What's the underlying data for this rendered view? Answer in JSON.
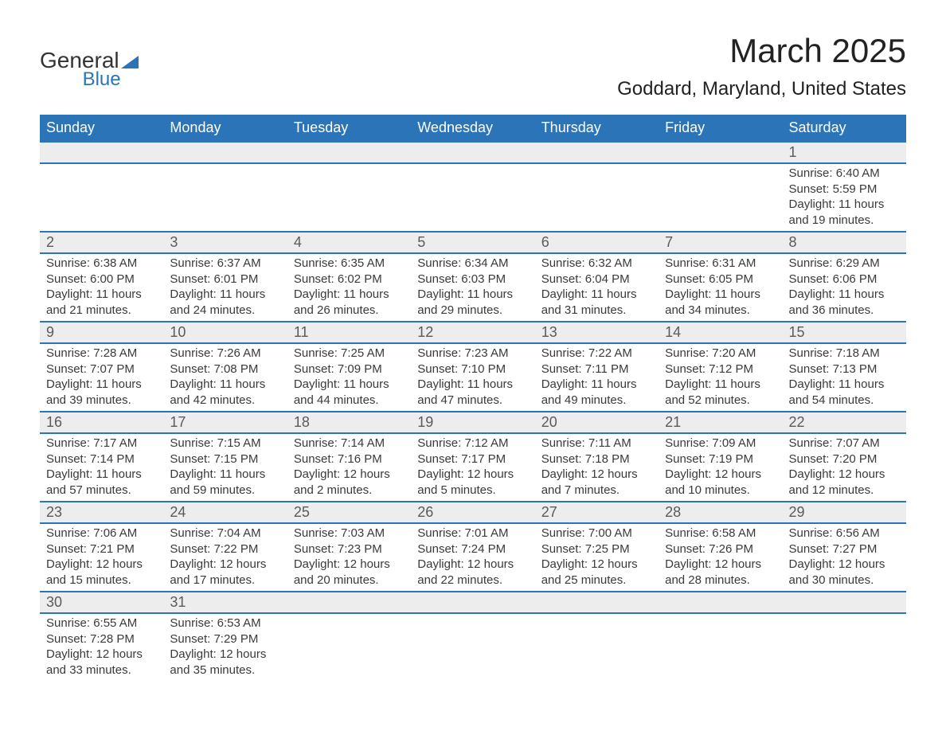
{
  "logo": {
    "line1": "General",
    "line2": "Blue"
  },
  "title": "March 2025",
  "subtitle": "Goddard, Maryland, United States",
  "weekday_labels": [
    "Sunday",
    "Monday",
    "Tuesday",
    "Wednesday",
    "Thursday",
    "Friday",
    "Saturday"
  ],
  "colors": {
    "header_bg": "#2b74b8",
    "header_text": "#ffffff",
    "daynum_bg": "#ededed",
    "row_separator": "#2b74b8",
    "body_text": "#3a3a3a",
    "title_text": "#222222",
    "page_bg": "#ffffff"
  },
  "typography": {
    "title_fontsize": 42,
    "subtitle_fontsize": 24,
    "weekday_fontsize": 18,
    "daynum_fontsize": 18,
    "detail_fontsize": 15,
    "font_family": "Arial"
  },
  "layout": {
    "columns": 7,
    "rows": 6,
    "first_day_column_index": 6
  },
  "days": [
    {
      "n": 1,
      "sunrise": "6:40 AM",
      "sunset": "5:59 PM",
      "daylight": "11 hours and 19 minutes."
    },
    {
      "n": 2,
      "sunrise": "6:38 AM",
      "sunset": "6:00 PM",
      "daylight": "11 hours and 21 minutes."
    },
    {
      "n": 3,
      "sunrise": "6:37 AM",
      "sunset": "6:01 PM",
      "daylight": "11 hours and 24 minutes."
    },
    {
      "n": 4,
      "sunrise": "6:35 AM",
      "sunset": "6:02 PM",
      "daylight": "11 hours and 26 minutes."
    },
    {
      "n": 5,
      "sunrise": "6:34 AM",
      "sunset": "6:03 PM",
      "daylight": "11 hours and 29 minutes."
    },
    {
      "n": 6,
      "sunrise": "6:32 AM",
      "sunset": "6:04 PM",
      "daylight": "11 hours and 31 minutes."
    },
    {
      "n": 7,
      "sunrise": "6:31 AM",
      "sunset": "6:05 PM",
      "daylight": "11 hours and 34 minutes."
    },
    {
      "n": 8,
      "sunrise": "6:29 AM",
      "sunset": "6:06 PM",
      "daylight": "11 hours and 36 minutes."
    },
    {
      "n": 9,
      "sunrise": "7:28 AM",
      "sunset": "7:07 PM",
      "daylight": "11 hours and 39 minutes."
    },
    {
      "n": 10,
      "sunrise": "7:26 AM",
      "sunset": "7:08 PM",
      "daylight": "11 hours and 42 minutes."
    },
    {
      "n": 11,
      "sunrise": "7:25 AM",
      "sunset": "7:09 PM",
      "daylight": "11 hours and 44 minutes."
    },
    {
      "n": 12,
      "sunrise": "7:23 AM",
      "sunset": "7:10 PM",
      "daylight": "11 hours and 47 minutes."
    },
    {
      "n": 13,
      "sunrise": "7:22 AM",
      "sunset": "7:11 PM",
      "daylight": "11 hours and 49 minutes."
    },
    {
      "n": 14,
      "sunrise": "7:20 AM",
      "sunset": "7:12 PM",
      "daylight": "11 hours and 52 minutes."
    },
    {
      "n": 15,
      "sunrise": "7:18 AM",
      "sunset": "7:13 PM",
      "daylight": "11 hours and 54 minutes."
    },
    {
      "n": 16,
      "sunrise": "7:17 AM",
      "sunset": "7:14 PM",
      "daylight": "11 hours and 57 minutes."
    },
    {
      "n": 17,
      "sunrise": "7:15 AM",
      "sunset": "7:15 PM",
      "daylight": "11 hours and 59 minutes."
    },
    {
      "n": 18,
      "sunrise": "7:14 AM",
      "sunset": "7:16 PM",
      "daylight": "12 hours and 2 minutes."
    },
    {
      "n": 19,
      "sunrise": "7:12 AM",
      "sunset": "7:17 PM",
      "daylight": "12 hours and 5 minutes."
    },
    {
      "n": 20,
      "sunrise": "7:11 AM",
      "sunset": "7:18 PM",
      "daylight": "12 hours and 7 minutes."
    },
    {
      "n": 21,
      "sunrise": "7:09 AM",
      "sunset": "7:19 PM",
      "daylight": "12 hours and 10 minutes."
    },
    {
      "n": 22,
      "sunrise": "7:07 AM",
      "sunset": "7:20 PM",
      "daylight": "12 hours and 12 minutes."
    },
    {
      "n": 23,
      "sunrise": "7:06 AM",
      "sunset": "7:21 PM",
      "daylight": "12 hours and 15 minutes."
    },
    {
      "n": 24,
      "sunrise": "7:04 AM",
      "sunset": "7:22 PM",
      "daylight": "12 hours and 17 minutes."
    },
    {
      "n": 25,
      "sunrise": "7:03 AM",
      "sunset": "7:23 PM",
      "daylight": "12 hours and 20 minutes."
    },
    {
      "n": 26,
      "sunrise": "7:01 AM",
      "sunset": "7:24 PM",
      "daylight": "12 hours and 22 minutes."
    },
    {
      "n": 27,
      "sunrise": "7:00 AM",
      "sunset": "7:25 PM",
      "daylight": "12 hours and 25 minutes."
    },
    {
      "n": 28,
      "sunrise": "6:58 AM",
      "sunset": "7:26 PM",
      "daylight": "12 hours and 28 minutes."
    },
    {
      "n": 29,
      "sunrise": "6:56 AM",
      "sunset": "7:27 PM",
      "daylight": "12 hours and 30 minutes."
    },
    {
      "n": 30,
      "sunrise": "6:55 AM",
      "sunset": "7:28 PM",
      "daylight": "12 hours and 33 minutes."
    },
    {
      "n": 31,
      "sunrise": "6:53 AM",
      "sunset": "7:29 PM",
      "daylight": "12 hours and 35 minutes."
    }
  ],
  "labels": {
    "sunrise_prefix": "Sunrise: ",
    "sunset_prefix": "Sunset: ",
    "daylight_prefix": "Daylight: "
  }
}
